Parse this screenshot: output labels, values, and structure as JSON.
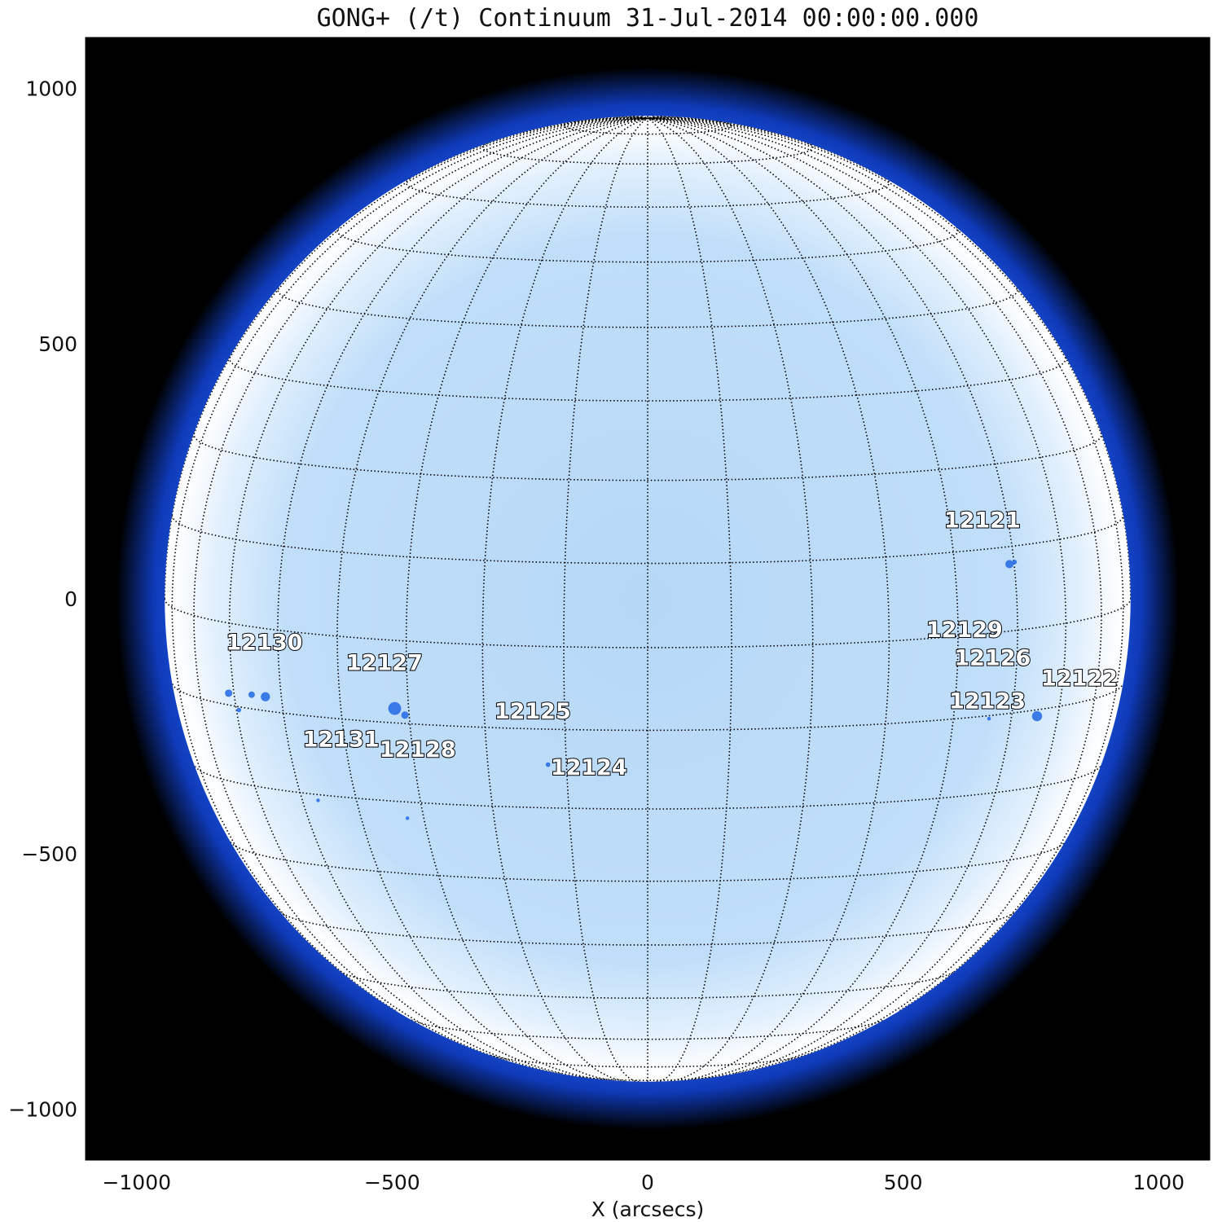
{
  "title": "GONG+ (/t) Continuum 31-Jul-2014 00:00:00.000",
  "xlabel": "X (arcsecs)",
  "chart_data": {
    "type": "image",
    "x_range": [
      -1100,
      1100
    ],
    "y_range": [
      -1100,
      1100
    ],
    "solar_radius": 945,
    "x_ticks": [
      {
        "value": -1000,
        "label": "−1000"
      },
      {
        "value": -500,
        "label": "−500"
      },
      {
        "value": 0,
        "label": "0"
      },
      {
        "value": 500,
        "label": "500"
      },
      {
        "value": 1000,
        "label": "1000"
      }
    ],
    "y_ticks": [
      {
        "value": 1000,
        "label": "1000"
      },
      {
        "value": 500,
        "label": "500"
      },
      {
        "value": 0,
        "label": "0"
      },
      {
        "value": -500,
        "label": "−500"
      },
      {
        "value": -1000,
        "label": "−1000"
      }
    ],
    "active_regions": [
      {
        "label": "12121",
        "x": 580,
        "y": 140
      },
      {
        "label": "12129",
        "x": 545,
        "y": -75
      },
      {
        "label": "12126",
        "x": 600,
        "y": -130
      },
      {
        "label": "12122",
        "x": 770,
        "y": -170
      },
      {
        "label": "12123",
        "x": 590,
        "y": -215
      },
      {
        "label": "12130",
        "x": -825,
        "y": -100
      },
      {
        "label": "12127",
        "x": -590,
        "y": -140
      },
      {
        "label": "12125",
        "x": -300,
        "y": -235
      },
      {
        "label": "12131",
        "x": -675,
        "y": -290
      },
      {
        "label": "12128",
        "x": -525,
        "y": -310
      },
      {
        "label": "12124",
        "x": -190,
        "y": -345
      }
    ],
    "sunspots": [
      {
        "x": 708,
        "y": 68,
        "r": 9
      },
      {
        "x": 718,
        "y": 72,
        "r": 5
      },
      {
        "x": 762,
        "y": -230,
        "r": 11
      },
      {
        "x": 668,
        "y": -235,
        "r": 4
      },
      {
        "x": -495,
        "y": -215,
        "r": 14
      },
      {
        "x": -475,
        "y": -228,
        "r": 8
      },
      {
        "x": -820,
        "y": -185,
        "r": 8
      },
      {
        "x": -775,
        "y": -188,
        "r": 7
      },
      {
        "x": -748,
        "y": -192,
        "r": 10
      },
      {
        "x": -800,
        "y": -218,
        "r": 5
      },
      {
        "x": -195,
        "y": -325,
        "r": 5
      },
      {
        "x": -645,
        "y": -395,
        "r": 4
      },
      {
        "x": -470,
        "y": -430,
        "r": 4
      }
    ]
  }
}
